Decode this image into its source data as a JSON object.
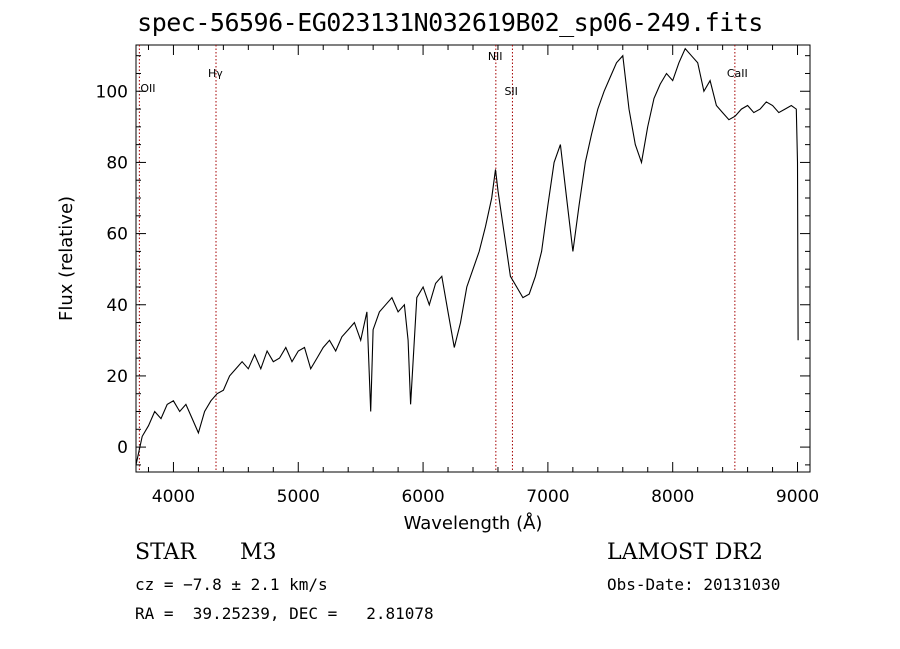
{
  "title": "spec-56596-EG023131N032619B02_sp06-249.fits",
  "footer": {
    "object_class": "STAR",
    "subclass": "M3",
    "survey": "LAMOST DR2",
    "cz": "cz = −7.8 ± 2.1 km/s",
    "obs_date": "Obs-Date: 20131030",
    "coords": "RA =  39.25239, DEC =   2.81078"
  },
  "chart_data": {
    "type": "line",
    "title": "spec-56596-EG023131N032619B02_sp06-249.fits",
    "xlabel": "Wavelength (Å)",
    "ylabel": "Flux (relative)",
    "xlim": [
      3700,
      9100
    ],
    "ylim": [
      -7,
      113
    ],
    "x_ticks": [
      4000,
      5000,
      6000,
      7000,
      8000,
      9000
    ],
    "y_ticks": [
      0,
      20,
      40,
      60,
      80,
      100
    ],
    "grid": false,
    "line_color": "#000000",
    "line_markers": [
      {
        "label": "OII",
        "x": 3727
      },
      {
        "label": "Hγ",
        "x": 4341
      },
      {
        "label": "NII",
        "x": 6583
      },
      {
        "label": "SII",
        "x": 6716
      },
      {
        "label": "CaII",
        "x": 8498
      }
    ],
    "marker_color": "#a40000",
    "series": [
      {
        "x": [
          3700,
          3750,
          3800,
          3850,
          3900,
          3950,
          4000,
          4050,
          4100,
          4150,
          4200,
          4250,
          4300,
          4350,
          4400,
          4450,
          4500,
          4550,
          4600,
          4650,
          4700,
          4750,
          4800,
          4850,
          4900,
          4950,
          5000,
          5050,
          5100,
          5150,
          5200,
          5250,
          5300,
          5350,
          5400,
          5450,
          5500,
          5550,
          5580,
          5600,
          5650,
          5700,
          5750,
          5800,
          5850,
          5880,
          5900,
          5950,
          6000,
          6050,
          6100,
          6150,
          6200,
          6250,
          6300,
          6350,
          6400,
          6450,
          6500,
          6550,
          6580,
          6600,
          6650,
          6700,
          6750,
          6800,
          6850,
          6900,
          6950,
          7000,
          7050,
          7100,
          7150,
          7200,
          7250,
          7300,
          7350,
          7400,
          7450,
          7500,
          7550,
          7600,
          7650,
          7700,
          7750,
          7800,
          7850,
          7900,
          7950,
          8000,
          8050,
          8100,
          8150,
          8200,
          8250,
          8300,
          8350,
          8400,
          8450,
          8500,
          8550,
          8600,
          8650,
          8700,
          8750,
          8800,
          8850,
          8900,
          8950,
          8990,
          9000,
          9005
        ],
        "y": [
          -5,
          3,
          6,
          10,
          8,
          12,
          13,
          10,
          12,
          8,
          4,
          10,
          13,
          15,
          16,
          20,
          22,
          24,
          22,
          26,
          22,
          27,
          24,
          25,
          28,
          24,
          27,
          28,
          22,
          25,
          28,
          30,
          27,
          31,
          33,
          35,
          30,
          38,
          10,
          33,
          38,
          40,
          42,
          38,
          40,
          30,
          12,
          42,
          45,
          40,
          46,
          48,
          38,
          28,
          35,
          45,
          50,
          55,
          62,
          70,
          78,
          72,
          60,
          48,
          45,
          42,
          43,
          48,
          55,
          68,
          80,
          85,
          70,
          55,
          68,
          80,
          88,
          95,
          100,
          104,
          108,
          110,
          95,
          85,
          80,
          90,
          98,
          102,
          105,
          103,
          108,
          112,
          110,
          108,
          100,
          103,
          96,
          94,
          92,
          93,
          95,
          96,
          94,
          95,
          97,
          96,
          94,
          95,
          96,
          95,
          80,
          30
        ]
      }
    ]
  }
}
